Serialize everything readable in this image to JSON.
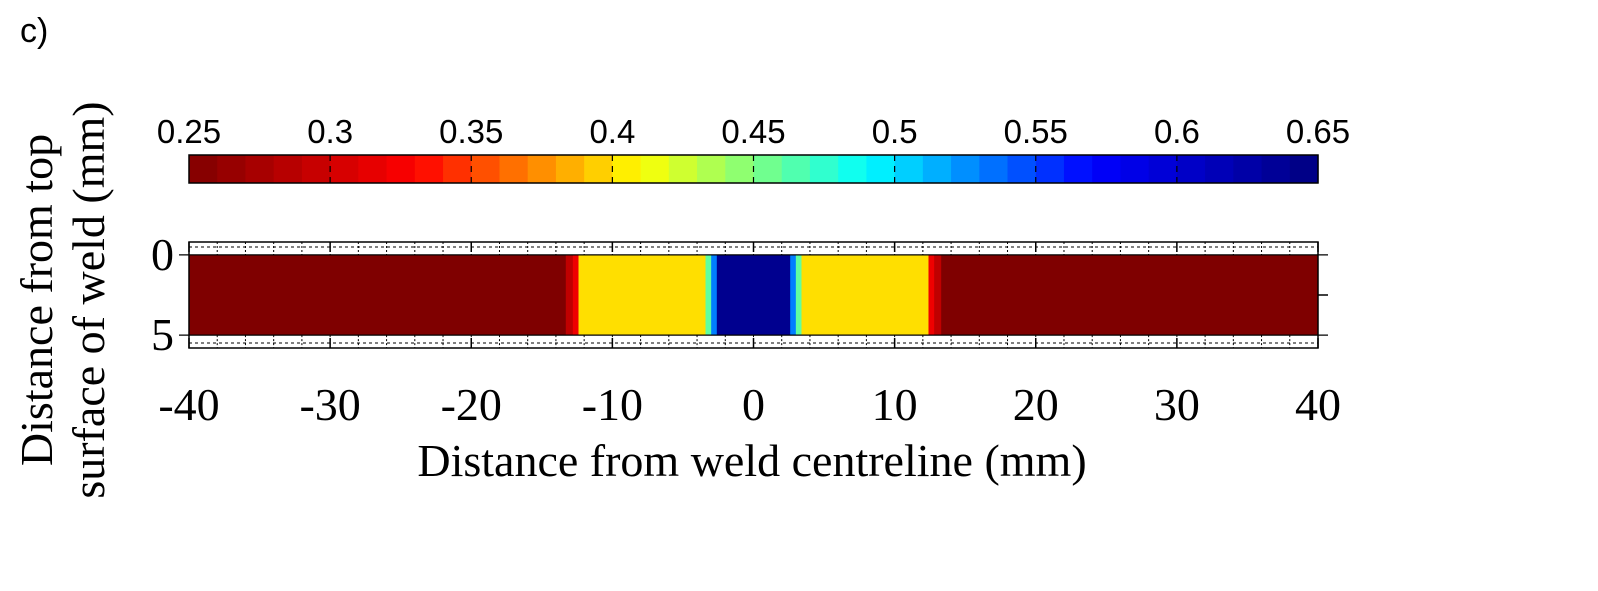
{
  "panel_label": "c)",
  "chart_data": {
    "type": "heatmap",
    "colorbar": {
      "min": 0.25,
      "max": 0.65,
      "tick_values": [
        0.25,
        0.3,
        0.35,
        0.4,
        0.45,
        0.5,
        0.55,
        0.6,
        0.65
      ],
      "tick_labels": [
        "0.25",
        "0.3",
        "0.35",
        "0.4",
        "0.45",
        "0.5",
        "0.55",
        "0.6",
        "0.65"
      ],
      "levels": 40,
      "colormap": "jet-reversed",
      "stops": [
        "#7f0000",
        "#ff0000",
        "#ffff00",
        "#00ffff",
        "#0000ff",
        "#00007f"
      ]
    },
    "xlabel": "Distance from weld centreline (mm)",
    "ylabel_lines": [
      "Distance from top",
      "surface of weld (mm)"
    ],
    "xlim": [
      -40,
      40
    ],
    "ylim": [
      -0.8,
      5.8
    ],
    "x_ticks": [
      -40,
      -30,
      -20,
      -10,
      0,
      10,
      20,
      30,
      40
    ],
    "x_tick_labels": [
      "-40",
      "-30",
      "-20",
      "-10",
      "0",
      "10",
      "20",
      "30",
      "40"
    ],
    "y_ticks": [
      0,
      5
    ],
    "y_tick_labels": [
      "0",
      "5"
    ],
    "depth_range": [
      0,
      5
    ],
    "regions": [
      {
        "x0": -40,
        "x1": -13.3,
        "value": 0.25
      },
      {
        "x0": -13.3,
        "x1": -12.8,
        "value": 0.29
      },
      {
        "x0": -12.8,
        "x1": -12.4,
        "value": 0.32
      },
      {
        "x0": -12.4,
        "x1": -3.4,
        "value": 0.4
      },
      {
        "x0": -3.4,
        "x1": -3.0,
        "value": 0.46
      },
      {
        "x0": -3.0,
        "x1": -2.6,
        "value": 0.53
      },
      {
        "x0": -2.6,
        "x1": 2.6,
        "value": 0.64
      },
      {
        "x0": 2.6,
        "x1": 3.0,
        "value": 0.53
      },
      {
        "x0": 3.0,
        "x1": 3.4,
        "value": 0.46
      },
      {
        "x0": 3.4,
        "x1": 12.4,
        "value": 0.4
      },
      {
        "x0": 12.4,
        "x1": 12.8,
        "value": 0.32
      },
      {
        "x0": 12.8,
        "x1": 13.3,
        "value": 0.29
      },
      {
        "x0": 13.3,
        "x1": 40,
        "value": 0.25
      }
    ]
  }
}
